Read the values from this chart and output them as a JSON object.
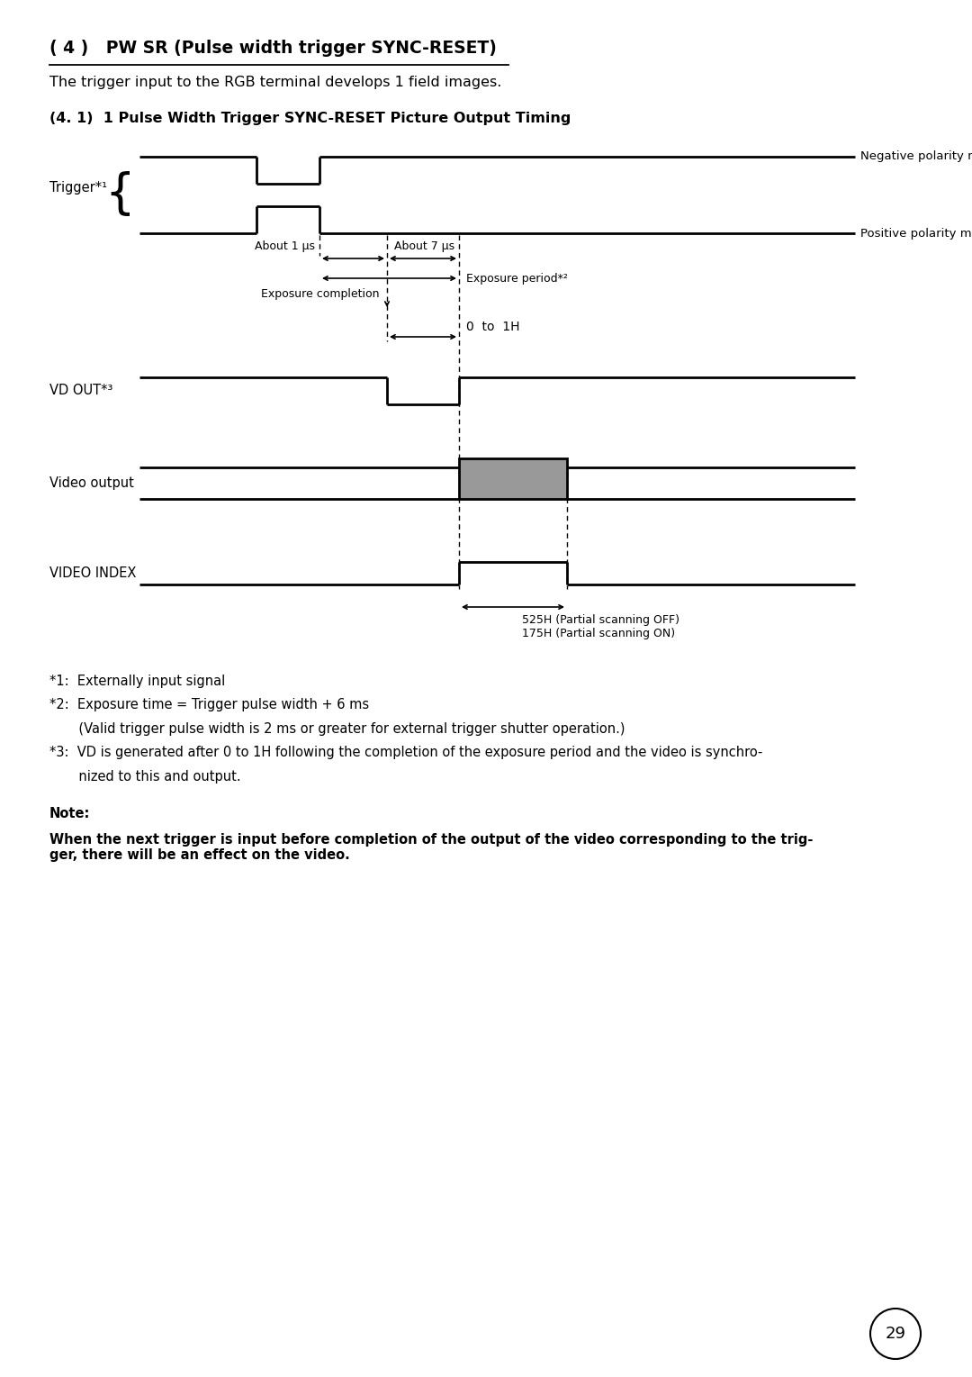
{
  "title_part1": "( 4 )",
  "title_part2": "  PW SR (Pulse width trigger SYNC-RESET)",
  "subtitle": "The trigger input to the RGB terminal develops 1 field images.",
  "section_title": "(4. 1)  1 Pulse Width Trigger SYNC-RESET Picture Output Timing",
  "bg_color": "#ffffff",
  "line_color": "#000000",
  "gray_fill": "#999999",
  "note_label": "Note:",
  "note_text": "When the next trigger is input before completion of the output of the video corresponding to the trig-\nger, there will be an effect on the video.",
  "page_number": "29",
  "fig_width": 10.8,
  "fig_height": 15.29,
  "dpi": 100
}
